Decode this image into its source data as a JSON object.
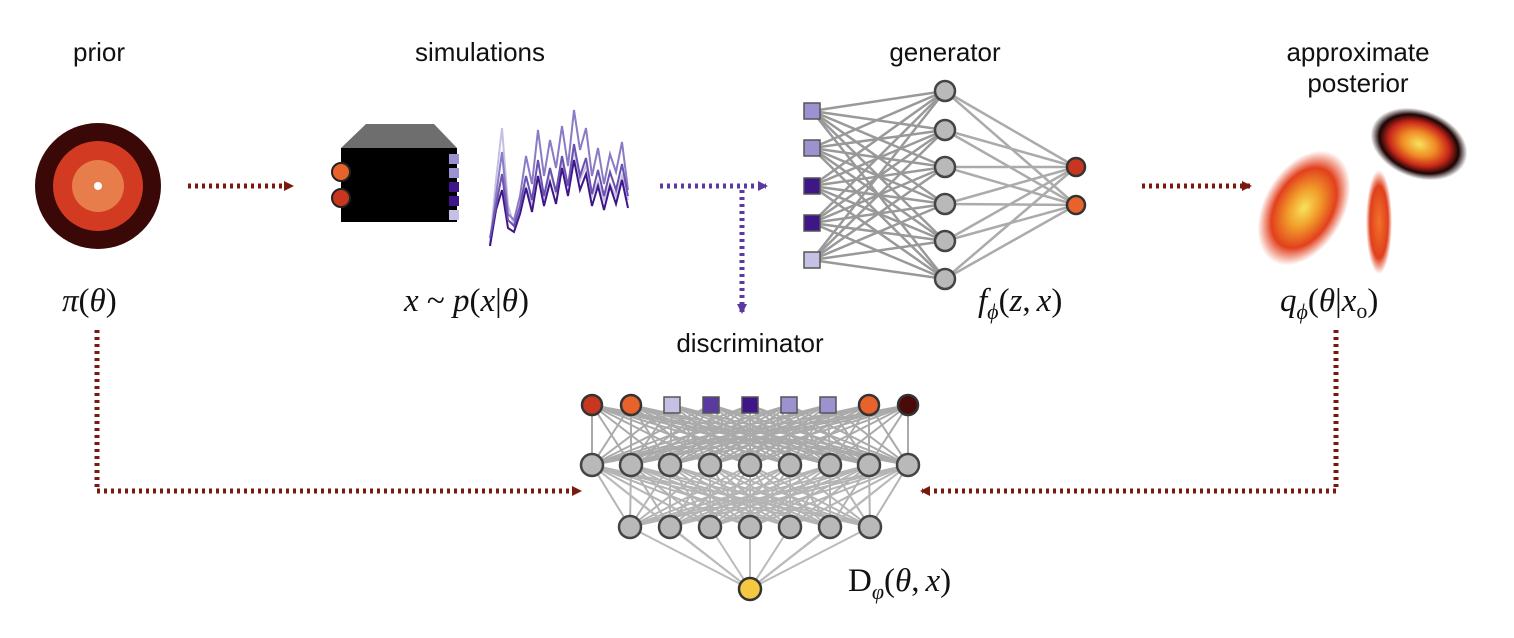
{
  "labels": {
    "prior": "prior",
    "simulations": "simulations",
    "generator": "generator",
    "posterior_line1": "approximate",
    "posterior_line2": "posterior",
    "discriminator": "discriminator"
  },
  "math": {
    "prior": {
      "pi": "π",
      "open": "(",
      "theta": "θ",
      "close": ")"
    },
    "simulator": {
      "x": "x",
      "tilde": " ~ ",
      "p": "p",
      "open": "(",
      "x2": "x",
      "bar": "|",
      "theta": "θ",
      "close": ")"
    },
    "generator": {
      "f": "f",
      "sub": "ϕ",
      "open": "(",
      "z": "z",
      "comma": ",",
      "x": "x",
      "close": ")"
    },
    "posterior": {
      "q": "q",
      "sub": "ϕ",
      "open": "(",
      "theta": "θ",
      "bar": "|",
      "x": "x",
      "xsub": "o",
      "close": ")"
    },
    "discriminator": {
      "D": "D",
      "sub": "φ",
      "open": "(",
      "theta": "θ",
      "comma": ",",
      "x": "x",
      "close": ")"
    }
  },
  "colors": {
    "dark_red": "#7a1a0e",
    "purple": "#5b3aa0",
    "node_grey": "#b9b9b9",
    "node_yellow": "#f5c842",
    "node_red": "#c8361f",
    "node_orange": "#e8632c",
    "node_maroon": "#4a0a0a",
    "sq_light": "#9b92cf",
    "sq_dark": "#3f1688",
    "sq_pale": "#c5c1e4"
  },
  "icons": {
    "prior": "target-icon",
    "simulator": "simulator-box-icon",
    "posterior": "posterior-density-icon"
  }
}
